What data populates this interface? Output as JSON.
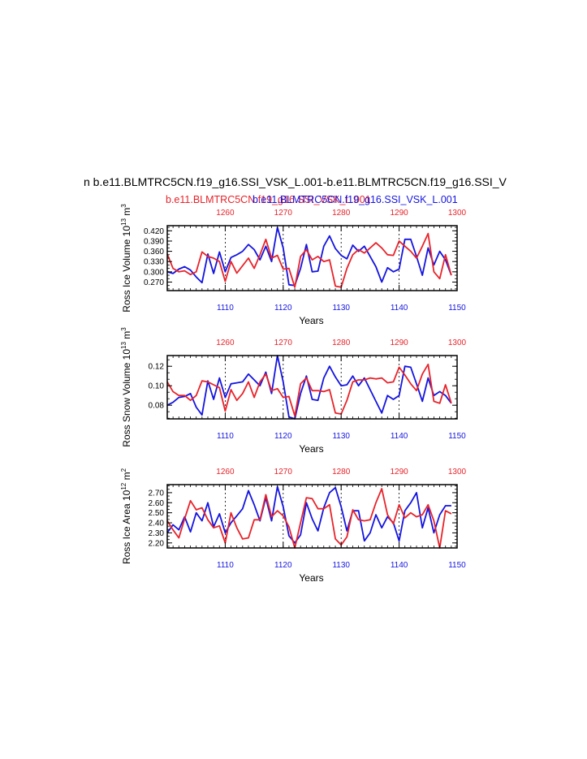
{
  "figure": {
    "title_main": "n b.e11.BLMTRC5CN.f19_g16.SSI_VSK_L.001-b.e11.BLMTRC5CN.f19_g16.SSI_V",
    "title_red": "b.e11.BLMTRC5CN.f19_g16.SSI_VSK_L.001",
    "title_blue": "b.e11.BLMTRC5CN.f19_g16.SSI_VSK_L.001",
    "colors": {
      "red": "#e8232a",
      "blue": "#1414e0",
      "axis": "#000000"
    }
  },
  "chart_data": [
    {
      "type": "line",
      "ylabel": "Ross Ice Volume 10^13 m^3",
      "ylabel_text": "Ross Ice Volume 10",
      "ylabel_exp1": "13",
      "ylabel_unit": " m",
      "ylabel_exp2": "3",
      "xlabel": "Years",
      "ylim": [
        0.245,
        0.435
      ],
      "yticks": [
        "0.270",
        "0.300",
        "0.330",
        "0.360",
        "0.390",
        "0.420"
      ],
      "ytick_values": [
        0.27,
        0.3,
        0.33,
        0.36,
        0.39,
        0.42
      ],
      "xlim_bottom": [
        1100,
        1150
      ],
      "xticks_bottom": [
        "1110",
        "1120",
        "1130",
        "1140",
        "1150"
      ],
      "xlim_top": [
        1250,
        1300
      ],
      "xticks_top": [
        "1260",
        "1270",
        "1280",
        "1290",
        "1300"
      ],
      "grid": "dashed vertical at top ticks",
      "series": [
        {
          "color": "blue",
          "axis": "bottom",
          "x_start": 1100,
          "values": [
            0.3,
            0.295,
            0.308,
            0.315,
            0.305,
            0.285,
            0.268,
            0.352,
            0.295,
            0.358,
            0.3,
            0.342,
            0.35,
            0.36,
            0.38,
            0.365,
            0.335,
            0.375,
            0.33,
            0.43,
            0.37,
            0.262,
            0.26,
            0.31,
            0.38,
            0.3,
            0.302,
            0.375,
            0.405,
            0.368,
            0.348,
            0.338,
            0.378,
            0.36,
            0.375,
            0.345,
            0.315,
            0.27,
            0.312,
            0.3,
            0.308,
            0.395,
            0.395,
            0.345,
            0.29,
            0.37,
            0.32,
            0.36,
            0.335,
            0.29
          ]
        },
        {
          "color": "red",
          "axis": "top",
          "x_start": 1250,
          "values": [
            0.352,
            0.31,
            0.3,
            0.303,
            0.292,
            0.3,
            0.358,
            0.345,
            0.34,
            0.33,
            0.272,
            0.33,
            0.296,
            0.318,
            0.34,
            0.31,
            0.35,
            0.395,
            0.34,
            0.348,
            0.308,
            0.31,
            0.255,
            0.345,
            0.365,
            0.335,
            0.345,
            0.33,
            0.335,
            0.258,
            0.255,
            0.31,
            0.35,
            0.365,
            0.355,
            0.37,
            0.385,
            0.37,
            0.35,
            0.348,
            0.39,
            0.375,
            0.36,
            0.34,
            0.375,
            0.412,
            0.3,
            0.28,
            0.35,
            0.29
          ]
        }
      ]
    },
    {
      "type": "line",
      "ylabel": "Ross Snow Volume 10^13 m^3",
      "ylabel_text": "Ross Snow Volume 10",
      "ylabel_exp1": "13",
      "ylabel_unit": " m",
      "ylabel_exp2": "3",
      "xlabel": "Years",
      "ylim": [
        0.066,
        0.131
      ],
      "yticks": [
        "0.08",
        "0.10",
        "0.12"
      ],
      "ytick_values": [
        0.08,
        0.1,
        0.12
      ],
      "xlim_bottom": [
        1100,
        1150
      ],
      "xticks_bottom": [
        "1110",
        "1120",
        "1130",
        "1140",
        "1150"
      ],
      "xlim_top": [
        1250,
        1300
      ],
      "xticks_top": [
        "1260",
        "1270",
        "1280",
        "1290",
        "1300"
      ],
      "grid": "dashed vertical at top ticks",
      "series": [
        {
          "color": "blue",
          "axis": "bottom",
          "x_start": 1100,
          "values": [
            0.08,
            0.083,
            0.088,
            0.089,
            0.092,
            0.078,
            0.07,
            0.105,
            0.086,
            0.108,
            0.088,
            0.102,
            0.103,
            0.104,
            0.112,
            0.106,
            0.1,
            0.114,
            0.092,
            0.131,
            0.104,
            0.068,
            0.066,
            0.092,
            0.11,
            0.086,
            0.085,
            0.108,
            0.12,
            0.109,
            0.1,
            0.101,
            0.11,
            0.1,
            0.108,
            0.096,
            0.084,
            0.072,
            0.09,
            0.086,
            0.09,
            0.12,
            0.119,
            0.102,
            0.084,
            0.108,
            0.09,
            0.094,
            0.09,
            0.082
          ]
        },
        {
          "color": "red",
          "axis": "top",
          "x_start": 1250,
          "values": [
            0.104,
            0.094,
            0.09,
            0.09,
            0.085,
            0.09,
            0.105,
            0.104,
            0.101,
            0.098,
            0.074,
            0.096,
            0.085,
            0.092,
            0.104,
            0.088,
            0.104,
            0.112,
            0.095,
            0.097,
            0.088,
            0.089,
            0.069,
            0.102,
            0.108,
            0.095,
            0.095,
            0.094,
            0.096,
            0.072,
            0.071,
            0.085,
            0.104,
            0.106,
            0.106,
            0.108,
            0.107,
            0.108,
            0.103,
            0.104,
            0.119,
            0.111,
            0.102,
            0.095,
            0.112,
            0.122,
            0.084,
            0.082,
            0.101,
            0.082
          ]
        }
      ]
    },
    {
      "type": "line",
      "ylabel": "Ross Ice Area 10^12 m^2",
      "ylabel_text": "Ross Ice Area 10",
      "ylabel_exp1": "12",
      "ylabel_unit": " m",
      "ylabel_exp2": "2",
      "xlabel": "Years",
      "ylim": [
        2.15,
        2.78
      ],
      "yticks": [
        "2.20",
        "2.30",
        "2.40",
        "2.50",
        "2.60",
        "2.70"
      ],
      "ytick_values": [
        2.2,
        2.3,
        2.4,
        2.5,
        2.6,
        2.7
      ],
      "xlim_bottom": [
        1100,
        1150
      ],
      "xticks_bottom": [
        "1110",
        "1120",
        "1130",
        "1140",
        "1150"
      ],
      "xlim_top": [
        1250,
        1300
      ],
      "xticks_top": [
        "1260",
        "1270",
        "1280",
        "1290",
        "1300"
      ],
      "grid": "dashed vertical at top ticks",
      "series": [
        {
          "color": "blue",
          "axis": "bottom",
          "x_start": 1100,
          "values": [
            2.3,
            2.38,
            2.33,
            2.46,
            2.31,
            2.5,
            2.42,
            2.6,
            2.36,
            2.49,
            2.3,
            2.4,
            2.47,
            2.54,
            2.72,
            2.58,
            2.42,
            2.65,
            2.42,
            2.76,
            2.56,
            2.27,
            2.2,
            2.28,
            2.6,
            2.44,
            2.32,
            2.55,
            2.7,
            2.75,
            2.56,
            2.32,
            2.52,
            2.52,
            2.22,
            2.3,
            2.48,
            2.35,
            2.46,
            2.4,
            2.22,
            2.52,
            2.6,
            2.7,
            2.35,
            2.55,
            2.3,
            2.48,
            2.57,
            2.57
          ]
        },
        {
          "color": "red",
          "axis": "top",
          "x_start": 1250,
          "values": [
            2.42,
            2.33,
            2.25,
            2.44,
            2.62,
            2.53,
            2.55,
            2.43,
            2.35,
            2.37,
            2.2,
            2.5,
            2.35,
            2.24,
            2.25,
            2.43,
            2.43,
            2.68,
            2.46,
            2.52,
            2.47,
            2.36,
            2.15,
            2.4,
            2.65,
            2.64,
            2.54,
            2.54,
            2.58,
            2.24,
            2.18,
            2.26,
            2.53,
            2.43,
            2.42,
            2.43,
            2.6,
            2.74,
            2.48,
            2.39,
            2.58,
            2.45,
            2.5,
            2.46,
            2.48,
            2.58,
            2.42,
            2.15,
            2.52,
            2.49
          ]
        }
      ]
    }
  ]
}
